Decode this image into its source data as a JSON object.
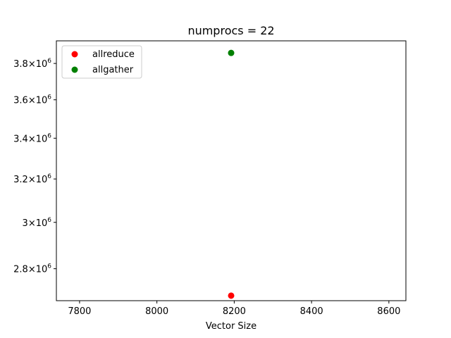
{
  "chart_data": {
    "type": "scatter",
    "title": "numprocs = 22",
    "xlabel": "Vector Size",
    "ylabel": "",
    "x_scale": "linear",
    "y_scale": "log",
    "xlim": [
      7740,
      8644
    ],
    "ylim": [
      2670000,
      3930000
    ],
    "x_ticks": [
      7800,
      8000,
      8200,
      8400,
      8600
    ],
    "x_tick_labels": [
      "7800",
      "8000",
      "8200",
      "8400",
      "8600"
    ],
    "y_ticks": [
      2800000,
      3000000,
      3200000,
      3400000,
      3600000,
      3800000
    ],
    "y_tick_mantissas": [
      "2.8",
      "3",
      "3.2",
      "3.4",
      "3.6",
      "3.8"
    ],
    "y_tick_times": "×",
    "y_tick_base": "10",
    "y_tick_exponent": "6",
    "grid": false,
    "legend_position": "upper-left",
    "series": [
      {
        "name": "allreduce",
        "color": "#ff0000",
        "points": [
          {
            "x": 8192,
            "y": 2690000
          }
        ]
      },
      {
        "name": "allgather",
        "color": "#008000",
        "points": [
          {
            "x": 8192,
            "y": 3860000
          }
        ]
      }
    ]
  }
}
